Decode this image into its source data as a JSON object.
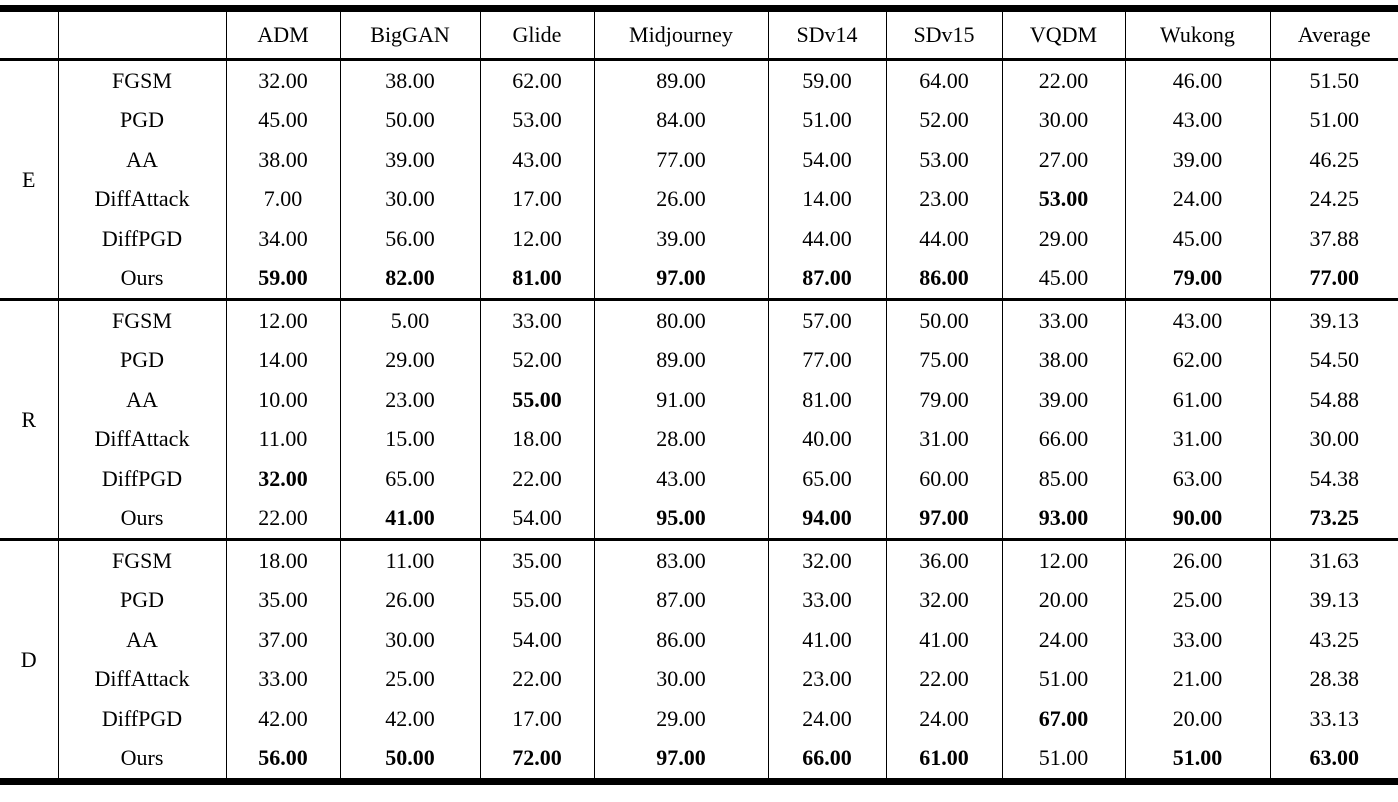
{
  "table": {
    "columns": [
      "ADM",
      "BigGAN",
      "Glide",
      "Midjourney",
      "SDv14",
      "SDv15",
      "VQDM",
      "Wukong",
      "Average"
    ],
    "sections": [
      {
        "group": "E",
        "rows": [
          {
            "method": "FGSM",
            "values": [
              "32.00",
              "38.00",
              "62.00",
              "89.00",
              "59.00",
              "64.00",
              "22.00",
              "46.00",
              "51.50"
            ],
            "bold": [
              false,
              false,
              false,
              false,
              false,
              false,
              false,
              false,
              false
            ]
          },
          {
            "method": "PGD",
            "values": [
              "45.00",
              "50.00",
              "53.00",
              "84.00",
              "51.00",
              "52.00",
              "30.00",
              "43.00",
              "51.00"
            ],
            "bold": [
              false,
              false,
              false,
              false,
              false,
              false,
              false,
              false,
              false
            ]
          },
          {
            "method": "AA",
            "values": [
              "38.00",
              "39.00",
              "43.00",
              "77.00",
              "54.00",
              "53.00",
              "27.00",
              "39.00",
              "46.25"
            ],
            "bold": [
              false,
              false,
              false,
              false,
              false,
              false,
              false,
              false,
              false
            ]
          },
          {
            "method": "DiffAttack",
            "values": [
              "7.00",
              "30.00",
              "17.00",
              "26.00",
              "14.00",
              "23.00",
              "53.00",
              "24.00",
              "24.25"
            ],
            "bold": [
              false,
              false,
              false,
              false,
              false,
              false,
              true,
              false,
              false
            ]
          },
          {
            "method": "DiffPGD",
            "values": [
              "34.00",
              "56.00",
              "12.00",
              "39.00",
              "44.00",
              "44.00",
              "29.00",
              "45.00",
              "37.88"
            ],
            "bold": [
              false,
              false,
              false,
              false,
              false,
              false,
              false,
              false,
              false
            ]
          },
          {
            "method": "Ours",
            "values": [
              "59.00",
              "82.00",
              "81.00",
              "97.00",
              "87.00",
              "86.00",
              "45.00",
              "79.00",
              "77.00"
            ],
            "bold": [
              true,
              true,
              true,
              true,
              true,
              true,
              false,
              true,
              true
            ]
          }
        ]
      },
      {
        "group": "R",
        "rows": [
          {
            "method": "FGSM",
            "values": [
              "12.00",
              "5.00",
              "33.00",
              "80.00",
              "57.00",
              "50.00",
              "33.00",
              "43.00",
              "39.13"
            ],
            "bold": [
              false,
              false,
              false,
              false,
              false,
              false,
              false,
              false,
              false
            ]
          },
          {
            "method": "PGD",
            "values": [
              "14.00",
              "29.00",
              "52.00",
              "89.00",
              "77.00",
              "75.00",
              "38.00",
              "62.00",
              "54.50"
            ],
            "bold": [
              false,
              false,
              false,
              false,
              false,
              false,
              false,
              false,
              false
            ]
          },
          {
            "method": "AA",
            "values": [
              "10.00",
              "23.00",
              "55.00",
              "91.00",
              "81.00",
              "79.00",
              "39.00",
              "61.00",
              "54.88"
            ],
            "bold": [
              false,
              false,
              true,
              false,
              false,
              false,
              false,
              false,
              false
            ]
          },
          {
            "method": "DiffAttack",
            "values": [
              "11.00",
              "15.00",
              "18.00",
              "28.00",
              "40.00",
              "31.00",
              "66.00",
              "31.00",
              "30.00"
            ],
            "bold": [
              false,
              false,
              false,
              false,
              false,
              false,
              false,
              false,
              false
            ]
          },
          {
            "method": "DiffPGD",
            "values": [
              "32.00",
              "65.00",
              "22.00",
              "43.00",
              "65.00",
              "60.00",
              "85.00",
              "63.00",
              "54.38"
            ],
            "bold": [
              true,
              false,
              false,
              false,
              false,
              false,
              false,
              false,
              false
            ]
          },
          {
            "method": "Ours",
            "values": [
              "22.00",
              "41.00",
              "54.00",
              "95.00",
              "94.00",
              "97.00",
              "93.00",
              "90.00",
              "73.25"
            ],
            "bold": [
              false,
              true,
              false,
              true,
              true,
              true,
              true,
              true,
              true
            ]
          }
        ]
      },
      {
        "group": "D",
        "rows": [
          {
            "method": "FGSM",
            "values": [
              "18.00",
              "11.00",
              "35.00",
              "83.00",
              "32.00",
              "36.00",
              "12.00",
              "26.00",
              "31.63"
            ],
            "bold": [
              false,
              false,
              false,
              false,
              false,
              false,
              false,
              false,
              false
            ]
          },
          {
            "method": "PGD",
            "values": [
              "35.00",
              "26.00",
              "55.00",
              "87.00",
              "33.00",
              "32.00",
              "20.00",
              "25.00",
              "39.13"
            ],
            "bold": [
              false,
              false,
              false,
              false,
              false,
              false,
              false,
              false,
              false
            ]
          },
          {
            "method": "AA",
            "values": [
              "37.00",
              "30.00",
              "54.00",
              "86.00",
              "41.00",
              "41.00",
              "24.00",
              "33.00",
              "43.25"
            ],
            "bold": [
              false,
              false,
              false,
              false,
              false,
              false,
              false,
              false,
              false
            ]
          },
          {
            "method": "DiffAttack",
            "values": [
              "33.00",
              "25.00",
              "22.00",
              "30.00",
              "23.00",
              "22.00",
              "51.00",
              "21.00",
              "28.38"
            ],
            "bold": [
              false,
              false,
              false,
              false,
              false,
              false,
              false,
              false,
              false
            ]
          },
          {
            "method": "DiffPGD",
            "values": [
              "42.00",
              "42.00",
              "17.00",
              "29.00",
              "24.00",
              "24.00",
              "67.00",
              "20.00",
              "33.13"
            ],
            "bold": [
              false,
              false,
              false,
              false,
              false,
              false,
              true,
              false,
              false
            ]
          },
          {
            "method": "Ours",
            "values": [
              "56.00",
              "50.00",
              "72.00",
              "97.00",
              "66.00",
              "61.00",
              "51.00",
              "51.00",
              "63.00"
            ],
            "bold": [
              true,
              true,
              true,
              true,
              true,
              true,
              false,
              true,
              true
            ]
          }
        ]
      }
    ]
  }
}
